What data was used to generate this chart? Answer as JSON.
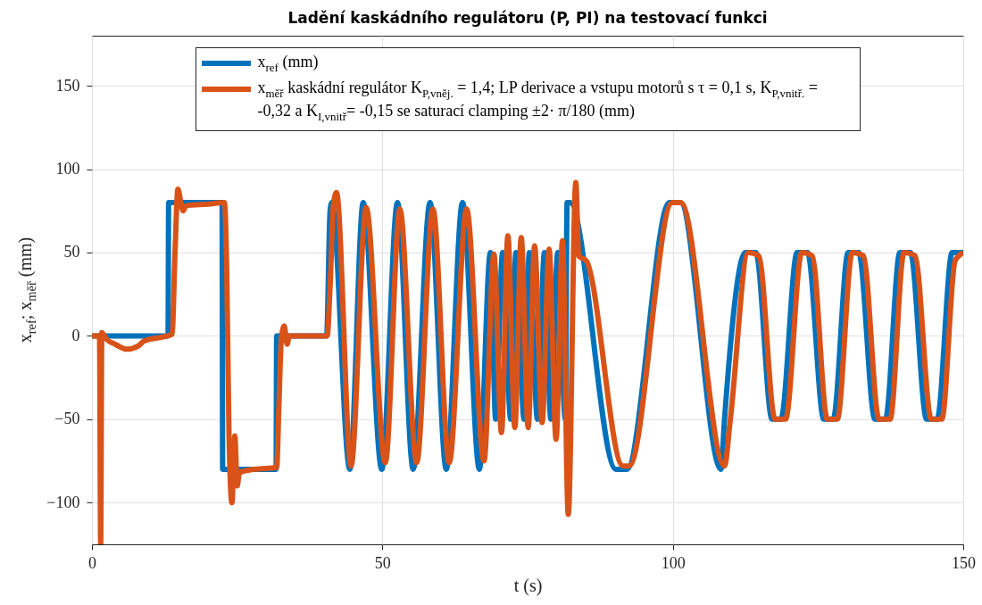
{
  "chart_data": {
    "type": "line",
    "title": "Ladění kaskádního regulátoru (P, PI) na testovací funkci",
    "xlabel": "t (s)",
    "ylabel": "x$_{ref}$; x$_{měř}$ (mm)",
    "xlim": [
      0,
      150
    ],
    "ylim": [
      -125,
      180
    ],
    "xticks": [
      0,
      50,
      100,
      150
    ],
    "yticks": [
      -100,
      -50,
      0,
      50,
      100,
      150
    ],
    "grid": true,
    "legend": "top",
    "series": [
      {
        "name": "x$_{ref}$ (mm)",
        "color": "#0072bd",
        "x": [
          0,
          13.1,
          13.2,
          22.4,
          22.5,
          31.7,
          31.8,
          40.4,
          41.0,
          41.3,
          44.4,
          46.7,
          49.9,
          52.6,
          55.3,
          58.2,
          61.0,
          63.8,
          66.7,
          68.6,
          69.5,
          70.7,
          72.1,
          73.0,
          74.4,
          75.3,
          76.7,
          77.9,
          79.0,
          80.2,
          81.5,
          81.8,
          82.3,
          90.2,
          92.1,
          99.4,
          101.3,
          108.3,
          108.9,
          112.5,
          114.3,
          117.1,
          118.6,
          121.4,
          123.2,
          126.0,
          127.6,
          130.2,
          132.0,
          134.8,
          136.6,
          139.1,
          140.9,
          143.7,
          145.5,
          148.1,
          150
        ],
        "values": [
          0,
          0,
          80,
          80,
          -80,
          -80,
          0,
          0,
          75,
          80,
          -80,
          80,
          -80,
          80,
          -80,
          80,
          -80,
          80,
          -80,
          50,
          -50,
          50,
          -50,
          50,
          -50,
          50,
          -50,
          50,
          -50,
          50,
          -50,
          80,
          80,
          -80,
          -80,
          80,
          80,
          -80,
          -50,
          50,
          50,
          -50,
          -50,
          50,
          50,
          -50,
          -50,
          50,
          50,
          -50,
          -50,
          50,
          50,
          -50,
          -50,
          50,
          50
        ]
      },
      {
        "name": "x$_{měř}$ kaskádní regulátor K$_{P,vněj.}$ = 1,4; LP derivace a vstupu motorů s τ = 0,1 s, K$_{P,vnitř.}$ = -0,32 a K$_{I,vnitř}$= -0,15 se saturací clamping ±2· π/180 (mm)",
        "color": "#d95319",
        "x": [
          0,
          1.3,
          1.5,
          1.7,
          2.5,
          4,
          6,
          8,
          9,
          13,
          13.8,
          14.3,
          14.8,
          15.3,
          15.7,
          16.2,
          20,
          22.8,
          23.2,
          23.6,
          24.1,
          24.6,
          25.0,
          25.4,
          28,
          31.8,
          32.2,
          32.6,
          33.1,
          33.6,
          34,
          40.5,
          41.0,
          41.6,
          42.1,
          44.6,
          47.2,
          50.5,
          53.0,
          55.9,
          58.7,
          61.5,
          64.5,
          67.5,
          69.2,
          70.5,
          71.6,
          72.8,
          73.9,
          75.1,
          76.2,
          77.5,
          78.7,
          79.9,
          81.0,
          82.0,
          83.3,
          83.8,
          85.1,
          91.4,
          92.5,
          99.9,
          101.4,
          108.9,
          109.9,
          113.0,
          114.8,
          117.6,
          119.4,
          122.2,
          124.0,
          126.6,
          128.3,
          130.9,
          132.8,
          135.5,
          137.4,
          139.8,
          141.7,
          144.5,
          146.3,
          148.6,
          150
        ],
        "values": [
          0,
          0,
          -125,
          2,
          -2,
          -5,
          -8,
          -6,
          -3,
          0,
          1,
          50,
          88,
          80,
          75,
          78,
          79,
          80,
          40,
          -60,
          -100,
          -60,
          -90,
          -82,
          -80,
          -79,
          -40,
          -2,
          6,
          -5,
          0,
          0,
          30,
          80,
          86,
          -78,
          77,
          -76,
          76,
          -76,
          76,
          -76,
          76,
          -75,
          49,
          -58,
          60,
          -55,
          59,
          -55,
          54,
          -52,
          52,
          -62,
          57,
          -107,
          92,
          48,
          45,
          -78,
          -78,
          80,
          80,
          -78,
          -50,
          50,
          48,
          -50,
          -50,
          50,
          48,
          -50,
          -50,
          50,
          48,
          -50,
          -50,
          50,
          48,
          -50,
          -50,
          45,
          50
        ]
      }
    ]
  }
}
